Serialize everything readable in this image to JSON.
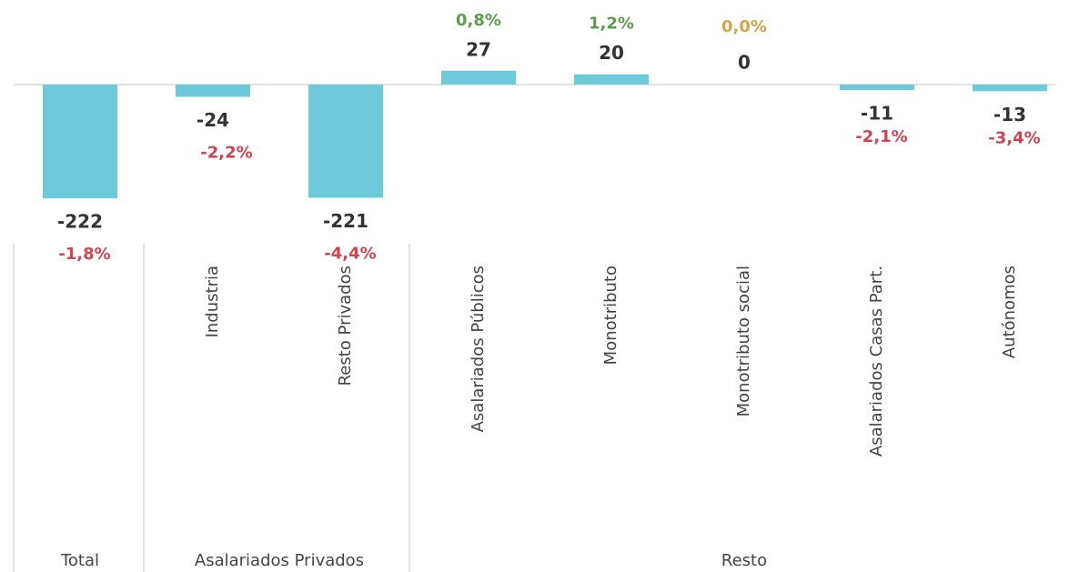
{
  "chart_data": {
    "type": "bar",
    "categories": [
      null,
      "Industria",
      "Resto Privados",
      "Asalariados Públicos",
      "Monotributo",
      "Monotributo social",
      "Asalariados Casas Part.",
      "Autónomos"
    ],
    "values": [
      -222,
      -24,
      -221,
      27,
      20,
      0,
      -11,
      -13
    ],
    "color": "#6ccadb",
    "changes": {
      "values": [
        -1.8,
        -2.2,
        -4.4,
        0.8,
        1.2,
        0.0,
        -2.1,
        -3.4
      ],
      "value_labels": [
        "-1,8%",
        "-2,2%",
        "-4,4%",
        "0,8%",
        "1,2%",
        "0,0%",
        "-2,1%",
        "-3,4%"
      ],
      "colors": {
        "negative": "#d0434f",
        "positive": "#5c9e4c",
        "zero": "#d6a447"
      }
    },
    "groups": [
      {
        "label": "Total",
        "count": 1
      },
      {
        "label": "Asalariados Privados",
        "count": 2
      },
      {
        "label": "Resto",
        "count": 5
      }
    ],
    "ylim": [
      -300,
      165
    ]
  }
}
